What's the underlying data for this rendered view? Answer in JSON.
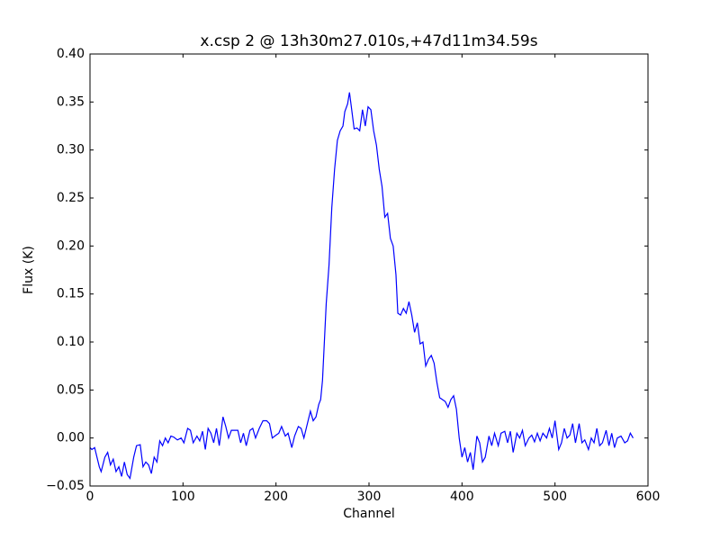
{
  "chart_data": {
    "type": "line",
    "title": "x.csp 2 @ 13h30m27.010s,+47d11m34.59s",
    "x_label": "Channel",
    "y_label": "Flux (K)",
    "color": "#0000ff",
    "xlim": [
      0,
      600
    ],
    "xticks": [
      0,
      100,
      200,
      300,
      400,
      500,
      600
    ],
    "ylim": [
      -0.05,
      0.4
    ],
    "yticks": [
      {
        "value": -0.05,
        "label": "−0.05"
      },
      {
        "value": 0,
        "label": "0.00"
      },
      {
        "value": 0.05,
        "label": "0.05"
      },
      {
        "value": 0.1,
        "label": "0.10"
      },
      {
        "value": 0.15,
        "label": "0.15"
      },
      {
        "value": 0.2,
        "label": "0.20"
      },
      {
        "value": 0.25,
        "label": "0.25"
      },
      {
        "value": 0.3,
        "label": "0.30"
      },
      {
        "value": 0.35,
        "label": "0.35"
      },
      {
        "value": 0.4,
        "label": "0.40"
      }
    ],
    "x": [
      0,
      2,
      5,
      10,
      12,
      16,
      19,
      22,
      25,
      28,
      31,
      34,
      37,
      40,
      43,
      47,
      50,
      54,
      57,
      60,
      63,
      66,
      69,
      72,
      75,
      78,
      81,
      84,
      87,
      90,
      94,
      98,
      101,
      105,
      108,
      111,
      115,
      118,
      121,
      124,
      127,
      130,
      133,
      136,
      139,
      143,
      146,
      149,
      152,
      156,
      159,
      162,
      165,
      168,
      172,
      175,
      178,
      182,
      186,
      190,
      193,
      196,
      200,
      203,
      206,
      210,
      213,
      217,
      220,
      224,
      227,
      230,
      233,
      237,
      240,
      243,
      246,
      248,
      250,
      252,
      254,
      257,
      260,
      263,
      266,
      269,
      272,
      274,
      277,
      279,
      281,
      284,
      287,
      290,
      293,
      296,
      299,
      302,
      305,
      308,
      311,
      314,
      317,
      320,
      323,
      326,
      329,
      331,
      334,
      337,
      340,
      343,
      346,
      349,
      352,
      355,
      358,
      361,
      364,
      367,
      370,
      373,
      376,
      379,
      382,
      385,
      388,
      391,
      394,
      397,
      400,
      403,
      406,
      409,
      412,
      416,
      419,
      422,
      425,
      429,
      432,
      435,
      439,
      442,
      446,
      449,
      452,
      455,
      459,
      462,
      465,
      468,
      472,
      475,
      478,
      481,
      484,
      487,
      491,
      494,
      497,
      500,
      504,
      507,
      510,
      513,
      516,
      519,
      522,
      526,
      529,
      532,
      536,
      539,
      542,
      545,
      548,
      551,
      555,
      558,
      561,
      564,
      567,
      571,
      575,
      578,
      581,
      584
    ],
    "values": [
      -0.01,
      -0.012,
      -0.01,
      -0.03,
      -0.035,
      -0.02,
      -0.015,
      -0.028,
      -0.022,
      -0.035,
      -0.03,
      -0.04,
      -0.025,
      -0.038,
      -0.042,
      -0.02,
      -0.008,
      -0.007,
      -0.03,
      -0.025,
      -0.028,
      -0.037,
      -0.02,
      -0.025,
      -0.003,
      -0.008,
      0.0,
      -0.005,
      0.002,
      0.001,
      -0.002,
      0.0,
      -0.005,
      0.01,
      0.008,
      -0.005,
      0.002,
      -0.003,
      0.007,
      -0.012,
      0.01,
      0.005,
      -0.005,
      0.01,
      -0.008,
      0.022,
      0.012,
      0.0,
      0.008,
      0.008,
      0.008,
      -0.005,
      0.005,
      -0.008,
      0.008,
      0.01,
      0.0,
      0.01,
      0.018,
      0.018,
      0.015,
      0.0,
      0.003,
      0.005,
      0.012,
      0.002,
      0.005,
      -0.01,
      0.002,
      0.012,
      0.01,
      0.0,
      0.012,
      0.028,
      0.018,
      0.022,
      0.035,
      0.04,
      0.06,
      0.1,
      0.14,
      0.18,
      0.24,
      0.28,
      0.31,
      0.32,
      0.325,
      0.34,
      0.348,
      0.36,
      0.345,
      0.322,
      0.323,
      0.32,
      0.342,
      0.325,
      0.345,
      0.342,
      0.32,
      0.305,
      0.28,
      0.262,
      0.23,
      0.234,
      0.208,
      0.2,
      0.17,
      0.13,
      0.128,
      0.135,
      0.13,
      0.142,
      0.128,
      0.11,
      0.12,
      0.098,
      0.1,
      0.075,
      0.082,
      0.086,
      0.078,
      0.058,
      0.042,
      0.04,
      0.038,
      0.032,
      0.04,
      0.044,
      0.03,
      0.0,
      -0.02,
      -0.01,
      -0.025,
      -0.015,
      -0.033,
      0.002,
      -0.005,
      -0.025,
      -0.02,
      0.002,
      -0.008,
      0.005,
      -0.008,
      0.005,
      0.007,
      -0.005,
      0.007,
      -0.015,
      0.005,
      0.0,
      0.008,
      -0.008,
      0.0,
      0.003,
      -0.004,
      0.005,
      -0.003,
      0.005,
      0.0,
      0.01,
      0.0,
      0.018,
      -0.012,
      -0.005,
      0.01,
      0.0,
      0.003,
      0.015,
      -0.005,
      0.015,
      -0.005,
      -0.002,
      -0.012,
      0.0,
      -0.005,
      0.01,
      -0.008,
      -0.005,
      0.008,
      -0.008,
      0.005,
      -0.01,
      0.0,
      0.002,
      -0.005,
      -0.003,
      0.005,
      0.0
    ]
  }
}
